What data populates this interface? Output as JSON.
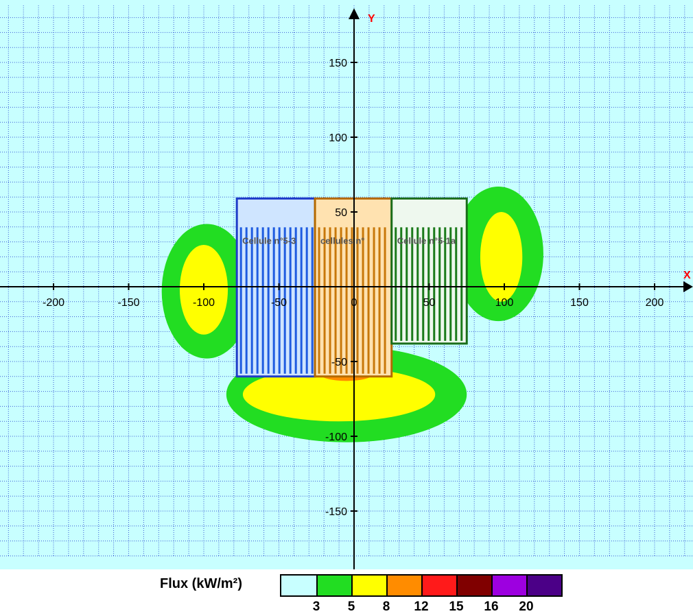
{
  "chart_data": {
    "type": "heatmap",
    "x_axis_label": "X",
    "y_axis_label": "Y",
    "xlim": [
      -220,
      230
    ],
    "ylim": [
      -190,
      185
    ],
    "grid": true,
    "grid_step": 10,
    "x_ticks": [
      -200,
      -150,
      -100,
      -50,
      0,
      50,
      100,
      150,
      200
    ],
    "y_ticks": [
      -150,
      -100,
      -50,
      50,
      100,
      150
    ],
    "x_tick_labels": [
      "-200",
      "-150",
      "-100",
      "-50",
      "0",
      "50",
      "100",
      "150",
      "200"
    ],
    "y_tick_labels": [
      "-150",
      "-100",
      "-50",
      "50",
      "100",
      "150"
    ],
    "background_color": "#c8ffff",
    "grid_color": "#3b5bd6",
    "flux_zones": [
      {
        "flux": 3,
        "color": "#22dd22",
        "shape": "ellipse",
        "cx": -98,
        "cy": -3,
        "rx": 30,
        "ry": 45
      },
      {
        "flux": 3,
        "color": "#22dd22",
        "shape": "ellipse",
        "cx": 96,
        "cy": 22,
        "rx": 30,
        "ry": 45
      },
      {
        "flux": 3,
        "color": "#22dd22",
        "shape": "ellipse",
        "cx": -5,
        "cy": -72,
        "rx": 80,
        "ry": 32
      },
      {
        "flux": 5,
        "color": "#ffff00",
        "shape": "ellipse",
        "cx": -100,
        "cy": -2,
        "rx": 16,
        "ry": 30
      },
      {
        "flux": 5,
        "color": "#ffff00",
        "shape": "ellipse",
        "cx": 98,
        "cy": 20,
        "rx": 14,
        "ry": 30
      },
      {
        "flux": 5,
        "color": "#ffff00",
        "shape": "ellipse",
        "cx": -10,
        "cy": -72,
        "rx": 64,
        "ry": 18
      },
      {
        "flux": 8,
        "color": "#ff8c00",
        "shape": "ellipse",
        "cx": -5,
        "cy": -58,
        "rx": 18,
        "ry": 5
      },
      {
        "flux": 12,
        "color": "#ff1a1a",
        "shape": "ellipse",
        "cx": -10,
        "cy": -55,
        "rx": 8,
        "ry": 3
      }
    ],
    "cells": [
      {
        "label": "Cellule n°5-3",
        "x0": -78,
        "x1": -26,
        "y0": -60,
        "y1": 59,
        "border_color": "#1e3cc8",
        "stripe_color": "#1e5be0",
        "fill": "#cfe5ff"
      },
      {
        "label": "cellules n°",
        "x0": -26,
        "x1": 25,
        "y0": -60,
        "y1": 59,
        "border_color": "#b46a00",
        "stripe_color": "#c8780a",
        "fill": "#ffe2b0"
      },
      {
        "label": "Cellule n°5-1a",
        "x0": 25,
        "x1": 75,
        "y0": -38,
        "y1": 59,
        "border_color": "#1a6e1a",
        "stripe_color": "#1a7a1a",
        "fill": "#eef8ee"
      }
    ]
  },
  "legend": {
    "title": "Flux (kW/m²)",
    "colors": [
      "#c8ffff",
      "#22dd22",
      "#ffff00",
      "#ff8c00",
      "#ff1a1a",
      "#800000",
      "#9d00e0",
      "#4b0087"
    ],
    "thresholds": [
      "3",
      "5",
      "8",
      "12",
      "15",
      "16",
      "20"
    ]
  }
}
